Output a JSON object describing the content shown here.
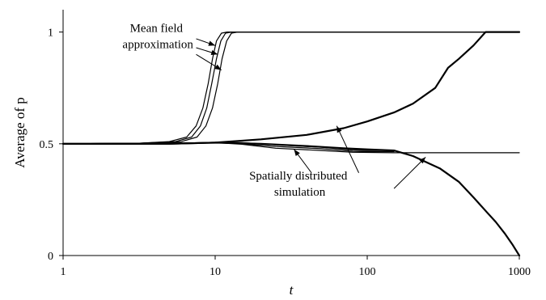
{
  "chart_data": {
    "type": "line",
    "title": "",
    "xlabel": "t",
    "ylabel": "Average of p",
    "xscale": "log",
    "xlim": [
      1,
      1000
    ],
    "ylim": [
      0,
      1.1
    ],
    "xticks": [
      {
        "value": 1,
        "label": "1"
      },
      {
        "value": 10,
        "label": "10"
      },
      {
        "value": 100,
        "label": "100"
      },
      {
        "value": 1000,
        "label": "1000"
      }
    ],
    "yticks": [
      {
        "value": 0,
        "label": "0"
      },
      {
        "value": 0.5,
        "label": "0.5"
      },
      {
        "value": 1,
        "label": "1"
      }
    ],
    "grid": false,
    "legend": "none",
    "line_color": "#000000",
    "series": [
      {
        "group": "mean_field",
        "width": 1.2,
        "points": [
          [
            1,
            0.5
          ],
          [
            3,
            0.502
          ],
          [
            5,
            0.51
          ],
          [
            6.5,
            0.53
          ],
          [
            7.5,
            0.58
          ],
          [
            8.3,
            0.66
          ],
          [
            9,
            0.77
          ],
          [
            9.6,
            0.88
          ],
          [
            10.2,
            0.96
          ],
          [
            11,
            0.995
          ],
          [
            12,
            1
          ],
          [
            1000,
            1
          ]
        ]
      },
      {
        "group": "mean_field",
        "width": 1.2,
        "points": [
          [
            1,
            0.5
          ],
          [
            3,
            0.502
          ],
          [
            5.5,
            0.51
          ],
          [
            7,
            0.53
          ],
          [
            8,
            0.58
          ],
          [
            8.8,
            0.66
          ],
          [
            9.5,
            0.77
          ],
          [
            10.2,
            0.88
          ],
          [
            10.9,
            0.96
          ],
          [
            11.7,
            0.995
          ],
          [
            12.8,
            1
          ],
          [
            1000,
            1
          ]
        ]
      },
      {
        "group": "mean_field",
        "width": 1.2,
        "points": [
          [
            1,
            0.5
          ],
          [
            3,
            0.502
          ],
          [
            6,
            0.51
          ],
          [
            7.6,
            0.53
          ],
          [
            8.7,
            0.58
          ],
          [
            9.6,
            0.66
          ],
          [
            10.4,
            0.77
          ],
          [
            11.1,
            0.88
          ],
          [
            11.9,
            0.96
          ],
          [
            12.8,
            0.995
          ],
          [
            14,
            1
          ],
          [
            1000,
            1
          ]
        ]
      },
      {
        "group": "spatial",
        "width": 2.2,
        "points": [
          [
            1,
            0.5
          ],
          [
            5,
            0.5
          ],
          [
            10,
            0.505
          ],
          [
            20,
            0.52
          ],
          [
            40,
            0.54
          ],
          [
            70,
            0.57
          ],
          [
            100,
            0.6
          ],
          [
            150,
            0.64
          ],
          [
            200,
            0.68
          ],
          [
            280,
            0.75
          ],
          [
            340,
            0.84
          ],
          [
            400,
            0.88
          ],
          [
            500,
            0.94
          ],
          [
            600,
            1
          ],
          [
            1000,
            1
          ]
        ]
      },
      {
        "group": "spatial",
        "width": 2.2,
        "points": [
          [
            1,
            0.5
          ],
          [
            5,
            0.5
          ],
          [
            10,
            0.505
          ],
          [
            20,
            0.5
          ],
          [
            40,
            0.49
          ],
          [
            70,
            0.48
          ],
          [
            100,
            0.475
          ],
          [
            150,
            0.47
          ],
          [
            200,
            0.445
          ],
          [
            300,
            0.39
          ],
          [
            400,
            0.33
          ],
          [
            500,
            0.26
          ],
          [
            600,
            0.2
          ],
          [
            700,
            0.15
          ],
          [
            800,
            0.1
          ],
          [
            900,
            0.05
          ],
          [
            1000,
            0
          ]
        ]
      },
      {
        "group": "spatial",
        "width": 1.2,
        "points": [
          [
            1,
            0.5
          ],
          [
            10,
            0.505
          ],
          [
            15,
            0.505
          ],
          [
            25,
            0.495
          ],
          [
            50,
            0.485
          ],
          [
            80,
            0.472
          ],
          [
            100,
            0.47
          ],
          [
            150,
            0.47
          ]
        ]
      },
      {
        "group": "spatial",
        "width": 1.2,
        "points": [
          [
            1,
            0.5
          ],
          [
            10,
            0.505
          ],
          [
            15,
            0.5
          ],
          [
            25,
            0.488
          ],
          [
            50,
            0.478
          ],
          [
            80,
            0.466
          ],
          [
            100,
            0.465
          ],
          [
            150,
            0.465
          ]
        ]
      },
      {
        "group": "spatial",
        "width": 1.2,
        "points": [
          [
            1,
            0.5
          ],
          [
            10,
            0.505
          ],
          [
            15,
            0.498
          ],
          [
            25,
            0.48
          ],
          [
            50,
            0.47
          ],
          [
            80,
            0.462
          ],
          [
            150,
            0.46
          ],
          [
            1000,
            0.46
          ]
        ]
      }
    ],
    "annotations": [
      {
        "lines": [
          "Mean field",
          "approximation"
        ],
        "at": [
          4.2,
          1
        ],
        "arrows": [
          [
            7.5,
            0.97,
            10,
            0.94
          ],
          [
            7.5,
            0.93,
            10.4,
            0.9
          ],
          [
            7.5,
            0.9,
            11,
            0.83
          ]
        ]
      },
      {
        "lines": [
          "Spatially distributed",
          "simulation"
        ],
        "at": [
          36,
          0.34
        ],
        "arrows": [
          [
            43,
            0.37,
            33,
            0.475
          ],
          [
            88,
            0.37,
            63,
            0.58
          ],
          [
            150,
            0.3,
            242,
            0.44
          ]
        ]
      }
    ]
  }
}
